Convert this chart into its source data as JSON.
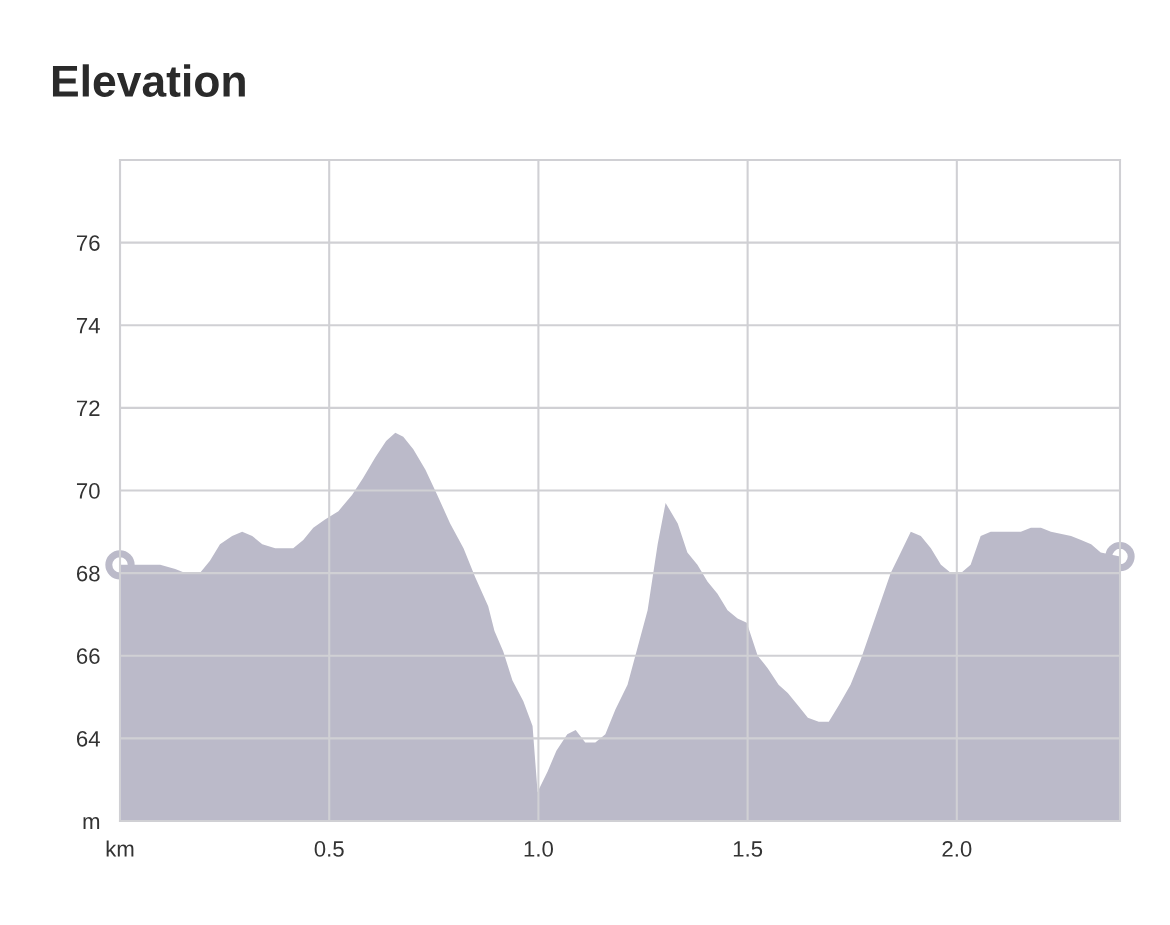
{
  "chart_data": {
    "type": "area",
    "title": "Elevation",
    "xlabel": null,
    "grid": true,
    "xlim": [
      0,
      2.39
    ],
    "ylim": [
      62,
      78
    ],
    "xticks": [
      {
        "value": 0,
        "label": "km"
      },
      0.5,
      {
        "value": 1,
        "label": "1.0"
      },
      1.5,
      {
        "value": 2,
        "label": "2.0"
      }
    ],
    "yticks": [
      {
        "value": 62,
        "label": "m"
      },
      64,
      66,
      68,
      70,
      72,
      74,
      76
    ],
    "series": [
      {
        "color": "#bbbac9",
        "x": [
          0,
          0.043,
          0.096,
          0.132,
          0.156,
          0.191,
          0.215,
          0.239,
          0.268,
          0.292,
          0.316,
          0.34,
          0.371,
          0.414,
          0.438,
          0.462,
          0.49,
          0.522,
          0.555,
          0.581,
          0.61,
          0.636,
          0.658,
          0.677,
          0.701,
          0.73,
          0.758,
          0.789,
          0.821,
          0.849,
          0.88,
          0.895,
          0.916,
          0.938,
          0.964,
          0.986,
          0.998,
          1.022,
          1.043,
          1.069,
          1.089,
          1.112,
          1.136,
          1.16,
          1.184,
          1.213,
          1.237,
          1.261,
          1.285,
          1.304,
          1.333,
          1.356,
          1.38,
          1.404,
          1.428,
          1.452,
          1.476,
          1.498,
          1.524,
          1.548,
          1.574,
          1.596,
          1.62,
          1.644,
          1.67,
          1.694,
          1.718,
          1.746,
          1.77,
          1.794,
          1.818,
          1.842,
          1.866,
          1.89,
          1.914,
          1.938,
          1.962,
          1.986,
          2.01,
          2.033,
          2.057,
          2.081,
          2.105,
          2.153,
          2.177,
          2.201,
          2.225,
          2.273,
          2.297,
          2.321,
          2.344,
          2.39
        ],
        "values": [
          68.2,
          68.2,
          68.2,
          68.1,
          68.0,
          68.0,
          68.3,
          68.7,
          68.9,
          69.0,
          68.9,
          68.7,
          68.6,
          68.6,
          68.8,
          69.1,
          69.3,
          69.5,
          69.9,
          70.3,
          70.8,
          71.2,
          71.4,
          71.3,
          71.0,
          70.5,
          69.9,
          69.2,
          68.6,
          67.9,
          67.2,
          66.6,
          66.1,
          65.4,
          64.9,
          64.3,
          62.7,
          63.2,
          63.7,
          64.1,
          64.2,
          63.9,
          63.9,
          64.1,
          64.7,
          65.3,
          66.2,
          67.1,
          68.7,
          69.7,
          69.2,
          68.5,
          68.2,
          67.8,
          67.5,
          67.1,
          66.9,
          66.8,
          66.0,
          65.7,
          65.3,
          65.1,
          64.8,
          64.5,
          64.4,
          64.4,
          64.8,
          65.3,
          65.9,
          66.6,
          67.3,
          68.0,
          68.5,
          69.0,
          68.9,
          68.6,
          68.2,
          68.0,
          68.0,
          68.2,
          68.9,
          69.0,
          69.0,
          69.0,
          69.1,
          69.1,
          69.0,
          68.9,
          68.8,
          68.7,
          68.5,
          68.4
        ]
      },
      {
        "type": "scatter",
        "color": "#bbbac9",
        "x": [
          0,
          2.39
        ],
        "values": [
          68.2,
          68.4
        ]
      }
    ]
  }
}
